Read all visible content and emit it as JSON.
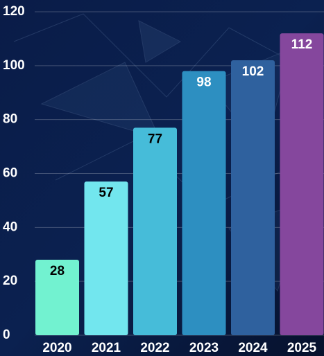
{
  "chart_data": {
    "type": "bar",
    "categories": [
      "2020",
      "2021",
      "2022",
      "2023",
      "2024",
      "2025"
    ],
    "values": [
      28,
      57,
      77,
      98,
      102,
      112
    ],
    "colors": [
      "#72f2d0",
      "#72e6ee",
      "#46bcd9",
      "#2d8fc1",
      "#2f619e",
      "#85479d"
    ],
    "label_colors": [
      "#000000",
      "#000000",
      "#000000",
      "#ffffff",
      "#ffffff",
      "#ffffff"
    ],
    "ylim": [
      0,
      120
    ],
    "yticks": [
      0,
      20,
      40,
      60,
      80,
      100,
      120
    ],
    "grid": true
  }
}
